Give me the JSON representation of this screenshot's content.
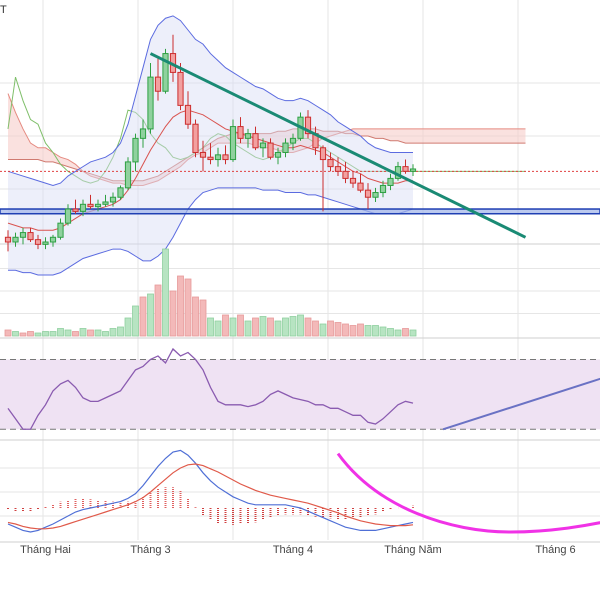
{
  "header": {
    "corner_text": "T"
  },
  "chart_data": [
    {
      "type": "candlestick",
      "panel": "price",
      "overlays": [
        "bollinger-bands",
        "ichimoku-cloud",
        "downtrend-line",
        "horizontal-support-band",
        "dotted-reference-line"
      ],
      "candles": [
        {
          "o": 0.72,
          "h": 0.75,
          "l": 0.66,
          "c": 0.7
        },
        {
          "o": 0.7,
          "h": 0.74,
          "l": 0.68,
          "c": 0.72
        },
        {
          "o": 0.72,
          "h": 0.76,
          "l": 0.69,
          "c": 0.74
        },
        {
          "o": 0.74,
          "h": 0.76,
          "l": 0.7,
          "c": 0.71
        },
        {
          "o": 0.71,
          "h": 0.73,
          "l": 0.67,
          "c": 0.69
        },
        {
          "o": 0.69,
          "h": 0.72,
          "l": 0.67,
          "c": 0.7
        },
        {
          "o": 0.7,
          "h": 0.73,
          "l": 0.68,
          "c": 0.72
        },
        {
          "o": 0.72,
          "h": 0.8,
          "l": 0.71,
          "c": 0.78
        },
        {
          "o": 0.78,
          "h": 0.86,
          "l": 0.77,
          "c": 0.84
        },
        {
          "o": 0.84,
          "h": 0.88,
          "l": 0.82,
          "c": 0.83
        },
        {
          "o": 0.83,
          "h": 0.88,
          "l": 0.81,
          "c": 0.86
        },
        {
          "o": 0.86,
          "h": 0.9,
          "l": 0.84,
          "c": 0.85
        },
        {
          "o": 0.85,
          "h": 0.88,
          "l": 0.83,
          "c": 0.86
        },
        {
          "o": 0.86,
          "h": 0.9,
          "l": 0.85,
          "c": 0.87
        },
        {
          "o": 0.87,
          "h": 0.91,
          "l": 0.85,
          "c": 0.89
        },
        {
          "o": 0.89,
          "h": 0.94,
          "l": 0.88,
          "c": 0.93
        },
        {
          "o": 0.93,
          "h": 1.06,
          "l": 0.92,
          "c": 1.04
        },
        {
          "o": 1.04,
          "h": 1.16,
          "l": 1.0,
          "c": 1.14
        },
        {
          "o": 1.14,
          "h": 1.22,
          "l": 1.1,
          "c": 1.18
        },
        {
          "o": 1.18,
          "h": 1.46,
          "l": 1.16,
          "c": 1.4
        },
        {
          "o": 1.4,
          "h": 1.48,
          "l": 1.3,
          "c": 1.34
        },
        {
          "o": 1.34,
          "h": 1.52,
          "l": 1.33,
          "c": 1.5
        },
        {
          "o": 1.5,
          "h": 1.58,
          "l": 1.38,
          "c": 1.42
        },
        {
          "o": 1.42,
          "h": 1.46,
          "l": 1.26,
          "c": 1.28
        },
        {
          "o": 1.28,
          "h": 1.34,
          "l": 1.18,
          "c": 1.2
        },
        {
          "o": 1.2,
          "h": 1.22,
          "l": 1.06,
          "c": 1.08
        },
        {
          "o": 1.08,
          "h": 1.13,
          "l": 1.0,
          "c": 1.06
        },
        {
          "o": 1.06,
          "h": 1.12,
          "l": 1.03,
          "c": 1.05
        },
        {
          "o": 1.05,
          "h": 1.1,
          "l": 1.02,
          "c": 1.07
        },
        {
          "o": 1.07,
          "h": 1.11,
          "l": 1.03,
          "c": 1.05
        },
        {
          "o": 1.05,
          "h": 1.22,
          "l": 1.04,
          "c": 1.19
        },
        {
          "o": 1.19,
          "h": 1.23,
          "l": 1.12,
          "c": 1.14
        },
        {
          "o": 1.14,
          "h": 1.18,
          "l": 1.1,
          "c": 1.16
        },
        {
          "o": 1.16,
          "h": 1.19,
          "l": 1.09,
          "c": 1.1
        },
        {
          "o": 1.1,
          "h": 1.14,
          "l": 1.06,
          "c": 1.12
        },
        {
          "o": 1.12,
          "h": 1.14,
          "l": 1.05,
          "c": 1.06
        },
        {
          "o": 1.06,
          "h": 1.1,
          "l": 1.03,
          "c": 1.08
        },
        {
          "o": 1.08,
          "h": 1.14,
          "l": 1.06,
          "c": 1.12
        },
        {
          "o": 1.12,
          "h": 1.16,
          "l": 1.09,
          "c": 1.14
        },
        {
          "o": 1.14,
          "h": 1.25,
          "l": 1.13,
          "c": 1.23
        },
        {
          "o": 1.23,
          "h": 1.26,
          "l": 1.14,
          "c": 1.16
        },
        {
          "o": 1.16,
          "h": 1.19,
          "l": 1.07,
          "c": 1.1
        },
        {
          "o": 1.1,
          "h": 1.11,
          "l": 0.83,
          "c": 1.05
        },
        {
          "o": 1.05,
          "h": 1.08,
          "l": 1.0,
          "c": 1.02
        },
        {
          "o": 1.02,
          "h": 1.06,
          "l": 0.98,
          "c": 1.0
        },
        {
          "o": 1.0,
          "h": 1.04,
          "l": 0.95,
          "c": 0.97
        },
        {
          "o": 0.97,
          "h": 1.0,
          "l": 0.93,
          "c": 0.95
        },
        {
          "o": 0.95,
          "h": 0.99,
          "l": 0.91,
          "c": 0.92
        },
        {
          "o": 0.92,
          "h": 0.95,
          "l": 0.84,
          "c": 0.89
        },
        {
          "o": 0.89,
          "h": 0.93,
          "l": 0.87,
          "c": 0.91
        },
        {
          "o": 0.91,
          "h": 0.96,
          "l": 0.89,
          "c": 0.94
        },
        {
          "o": 0.94,
          "h": 0.99,
          "l": 0.92,
          "c": 0.97
        },
        {
          "o": 0.97,
          "h": 1.04,
          "l": 0.96,
          "c": 1.02
        },
        {
          "o": 1.02,
          "h": 1.05,
          "l": 0.99,
          "c": 1.0
        },
        {
          "o": 1.0,
          "h": 1.03,
          "l": 0.98,
          "c": 1.01
        }
      ],
      "bollinger": {
        "upper": [
          1.0,
          0.99,
          0.98,
          0.97,
          0.96,
          0.95,
          0.94,
          0.95,
          0.98,
          1.0,
          1.02,
          1.04,
          1.05,
          1.06,
          1.08,
          1.12,
          1.2,
          1.32,
          1.44,
          1.56,
          1.62,
          1.65,
          1.66,
          1.64,
          1.6,
          1.56,
          1.54,
          1.5,
          1.47,
          1.44,
          1.42,
          1.4,
          1.38,
          1.36,
          1.35,
          1.33,
          1.31,
          1.3,
          1.3,
          1.31,
          1.3,
          1.28,
          1.26,
          1.24,
          1.21,
          1.19,
          1.17,
          1.15,
          1.12,
          1.1,
          1.09,
          1.08,
          1.08,
          1.08,
          1.08
        ],
        "middle": [
          0.78,
          0.77,
          0.76,
          0.76,
          0.75,
          0.75,
          0.75,
          0.76,
          0.78,
          0.8,
          0.82,
          0.83,
          0.84,
          0.85,
          0.86,
          0.88,
          0.92,
          0.97,
          1.03,
          1.09,
          1.14,
          1.19,
          1.23,
          1.25,
          1.26,
          1.25,
          1.24,
          1.22,
          1.2,
          1.18,
          1.17,
          1.16,
          1.15,
          1.14,
          1.13,
          1.12,
          1.11,
          1.1,
          1.1,
          1.11,
          1.1,
          1.09,
          1.08,
          1.06,
          1.04,
          1.02,
          1.0,
          0.99,
          0.97,
          0.96,
          0.95,
          0.95,
          0.95,
          0.96,
          0.96
        ],
        "lower": [
          0.58,
          0.58,
          0.57,
          0.57,
          0.56,
          0.56,
          0.56,
          0.57,
          0.59,
          0.61,
          0.63,
          0.64,
          0.65,
          0.66,
          0.67,
          0.67,
          0.66,
          0.64,
          0.62,
          0.62,
          0.64,
          0.67,
          0.72,
          0.78,
          0.84,
          0.88,
          0.91,
          0.92,
          0.93,
          0.93,
          0.93,
          0.93,
          0.93,
          0.93,
          0.92,
          0.92,
          0.92,
          0.91,
          0.91,
          0.91,
          0.9,
          0.9,
          0.89,
          0.88,
          0.87,
          0.86,
          0.85,
          0.84,
          0.83,
          0.82,
          0.82,
          0.82,
          0.82,
          0.83,
          0.84
        ]
      },
      "ichimoku": {
        "span_a": [
          1.33,
          1.25,
          1.18,
          1.12,
          1.1,
          1.1,
          1.08,
          1.06,
          1.05,
          1.03,
          1.0,
          0.98,
          0.97,
          0.96,
          0.95,
          0.95,
          0.94,
          0.94,
          0.94,
          0.95,
          0.96,
          0.98,
          1.0,
          1.02,
          1.05,
          1.07,
          1.08,
          1.1,
          1.12,
          1.12,
          1.12,
          1.12,
          1.12,
          1.11,
          1.1,
          1.1,
          1.09,
          1.08,
          1.08,
          1.09,
          1.1,
          1.12,
          1.14,
          1.15,
          1.16,
          1.17,
          1.18,
          1.18,
          1.18,
          1.18,
          1.18,
          1.18,
          1.18,
          1.18,
          1.18,
          1.18,
          1.18,
          1.18,
          1.18,
          1.18,
          1.18,
          1.18,
          1.18,
          1.18,
          1.18,
          1.18,
          1.18,
          1.18,
          1.18,
          1.18
        ],
        "span_b": [
          1.05,
          1.05,
          1.05,
          1.05,
          1.05,
          1.04,
          1.04,
          1.03,
          1.02,
          1.01,
          1.0,
          0.99,
          0.98,
          0.97,
          0.96,
          0.96,
          0.96,
          0.96,
          0.96,
          0.97,
          0.98,
          1.0,
          1.02,
          1.04,
          1.06,
          1.08,
          1.1,
          1.12,
          1.14,
          1.15,
          1.16,
          1.16,
          1.16,
          1.16,
          1.16,
          1.16,
          1.17,
          1.17,
          1.18,
          1.18,
          1.18,
          1.18,
          1.17,
          1.17,
          1.17,
          1.16,
          1.16,
          1.15,
          1.15,
          1.14,
          1.14,
          1.13,
          1.13,
          1.12,
          1.12,
          1.12,
          1.12,
          1.12,
          1.12,
          1.12,
          1.12,
          1.12,
          1.12,
          1.12,
          1.12,
          1.12,
          1.12,
          1.12,
          1.12,
          1.12
        ],
        "lagging": [
          1.18,
          1.4,
          1.3,
          1.22,
          1.2,
          1.12,
          1.08,
          1.03,
          1.0,
          0.98,
          0.96,
          0.95,
          0.96,
          1.0,
          1.06,
          1.14,
          1.26,
          1.25,
          1.22,
          1.16,
          1.12,
          1.1,
          1.06,
          1.05,
          1.06,
          1.08,
          1.1,
          1.14,
          1.16,
          1.15,
          1.12,
          1.1,
          1.08,
          1.06,
          1.05,
          1.06,
          1.08,
          1.1,
          1.12,
          1.14,
          1.14,
          1.12,
          1.1,
          1.08,
          1.06,
          1.04,
          1.02,
          1.0,
          1.0,
          1.0,
          1.0,
          1.0,
          1.0,
          1.0,
          1.0,
          1.0,
          1.0,
          1.0,
          1.0,
          1.0,
          1.0,
          1.0,
          1.0,
          1.0,
          1.0,
          1.0,
          1.0,
          1.0,
          1.0,
          1.0
        ]
      },
      "support_band": [
        0.82,
        0.84
      ],
      "dotted_level": 1.0,
      "downtrend_line": {
        "start": [
          19,
          1.5
        ],
        "end": [
          69,
          0.72
        ]
      },
      "ylim": [
        0.7,
        1.6
      ],
      "grid": true
    },
    {
      "type": "bar",
      "panel": "volume",
      "values": [
        4,
        3,
        2,
        3,
        2,
        3,
        3,
        5,
        4,
        3,
        5,
        4,
        4,
        3,
        5,
        6,
        12,
        20,
        26,
        28,
        34,
        58,
        30,
        40,
        38,
        26,
        24,
        12,
        10,
        14,
        12,
        14,
        10,
        12,
        13,
        12,
        10,
        12,
        13,
        14,
        12,
        10,
        8,
        10,
        9,
        8,
        7,
        8,
        7,
        7,
        6,
        5,
        4,
        5,
        4
      ],
      "up": [
        false,
        true,
        false,
        false,
        true,
        true,
        true,
        true,
        true,
        false,
        true,
        false,
        true,
        true,
        true,
        true,
        true,
        true,
        false,
        true,
        false,
        true,
        false,
        false,
        false,
        false,
        false,
        true,
        true,
        false,
        true,
        false,
        true,
        false,
        true,
        false,
        true,
        true,
        true,
        true,
        false,
        false,
        true,
        false,
        false,
        false,
        false,
        false,
        true,
        true,
        true,
        true,
        true,
        false,
        true
      ],
      "ylim": [
        0,
        60
      ]
    },
    {
      "type": "line",
      "panel": "rsi",
      "values": [
        42,
        36,
        30,
        30,
        38,
        44,
        52,
        56,
        58,
        54,
        48,
        46,
        46,
        48,
        50,
        52,
        58,
        64,
        66,
        70,
        72,
        68,
        76,
        72,
        74,
        70,
        64,
        54,
        46,
        44,
        44,
        44,
        43,
        44,
        46,
        50,
        52,
        50,
        48,
        47,
        46,
        44,
        44,
        42,
        42,
        40,
        38,
        38,
        34,
        33,
        36,
        40,
        44,
        46,
        45
      ],
      "overbought": 70,
      "oversold": 30,
      "ylim": [
        25,
        80
      ],
      "arrow": {
        "from": [
          58,
          30
        ],
        "to": [
          87,
          70
        ]
      }
    },
    {
      "type": "line",
      "panel": "macd",
      "series": [
        {
          "values": [
            -0.02,
            -0.024,
            -0.028,
            -0.03,
            -0.028,
            -0.024,
            -0.02,
            -0.015,
            -0.01,
            -0.005,
            -0.002,
            0.0,
            0.002,
            0.004,
            0.006,
            0.008,
            0.012,
            0.018,
            0.028,
            0.04,
            0.052,
            0.062,
            0.07,
            0.072,
            0.066,
            0.056,
            0.044,
            0.034,
            0.026,
            0.02,
            0.014,
            0.01,
            0.006,
            0.004,
            0.004,
            0.004,
            0.004,
            0.004,
            0.002,
            0.0,
            -0.004,
            -0.008,
            -0.012,
            -0.016,
            -0.02,
            -0.024,
            -0.026,
            -0.028,
            -0.028,
            -0.028,
            -0.026,
            -0.024,
            -0.022,
            -0.02,
            -0.018
          ]
        },
        {
          "values": [
            -0.018,
            -0.02,
            -0.023,
            -0.025,
            -0.026,
            -0.026,
            -0.025,
            -0.023,
            -0.02,
            -0.017,
            -0.014,
            -0.011,
            -0.008,
            -0.005,
            -0.002,
            0.001,
            0.004,
            0.008,
            0.013,
            0.02,
            0.028,
            0.036,
            0.044,
            0.05,
            0.054,
            0.055,
            0.053,
            0.049,
            0.045,
            0.04,
            0.035,
            0.03,
            0.026,
            0.022,
            0.019,
            0.016,
            0.014,
            0.012,
            0.01,
            0.008,
            0.006,
            0.003,
            0.0,
            -0.003,
            -0.006,
            -0.01,
            -0.013,
            -0.016,
            -0.018,
            -0.02,
            -0.021,
            -0.022,
            -0.022,
            -0.022,
            -0.021
          ]
        }
      ],
      "histogram": [
        -0.002,
        -0.004,
        -0.005,
        -0.005,
        -0.002,
        0.002,
        0.005,
        0.008,
        0.01,
        0.012,
        0.012,
        0.011,
        0.01,
        0.009,
        0.008,
        0.007,
        0.008,
        0.01,
        0.015,
        0.02,
        0.024,
        0.026,
        0.026,
        0.022,
        0.012,
        0.001,
        -0.009,
        -0.015,
        -0.019,
        -0.02,
        -0.021,
        -0.02,
        -0.02,
        -0.018,
        -0.015,
        -0.012,
        -0.01,
        -0.008,
        -0.008,
        -0.008,
        -0.01,
        -0.011,
        -0.012,
        -0.013,
        -0.014,
        -0.014,
        -0.013,
        -0.012,
        -0.01,
        -0.008,
        -0.005,
        -0.002,
        0.0,
        0.002,
        0.003
      ],
      "arc": {
        "start": [
          44,
          0.068
        ],
        "bottom": [
          67,
          -0.03
        ],
        "end": [
          97,
          0.052
        ]
      },
      "ylim": [
        -0.04,
        0.08
      ]
    }
  ],
  "x_axis": {
    "month_labels": [
      {
        "label": "Tháng Hai",
        "index": 5
      },
      {
        "label": "Tháng 3",
        "index": 19
      },
      {
        "label": "Tháng 4",
        "index": 38
      },
      {
        "label": "Tháng Năm",
        "index": 54
      },
      {
        "label": "Tháng 6",
        "index": 73
      }
    ]
  },
  "colors": {
    "up": "#2ea043",
    "down": "#cc2e2e",
    "up_body": "#8fd19e",
    "down_body": "#f2a0a0",
    "bollinger": "#5b6be0",
    "trendline": "#1a8a74",
    "support": "#1f3fb3",
    "rsi_line": "#8a5bb0",
    "rsi_fill": "#efe2f3",
    "arrow": "#6a72c4",
    "arc": "#f032e6",
    "macd_line": "#4f6fd6",
    "signal_line": "#e05a4a",
    "grid": "#e6e6e6"
  }
}
